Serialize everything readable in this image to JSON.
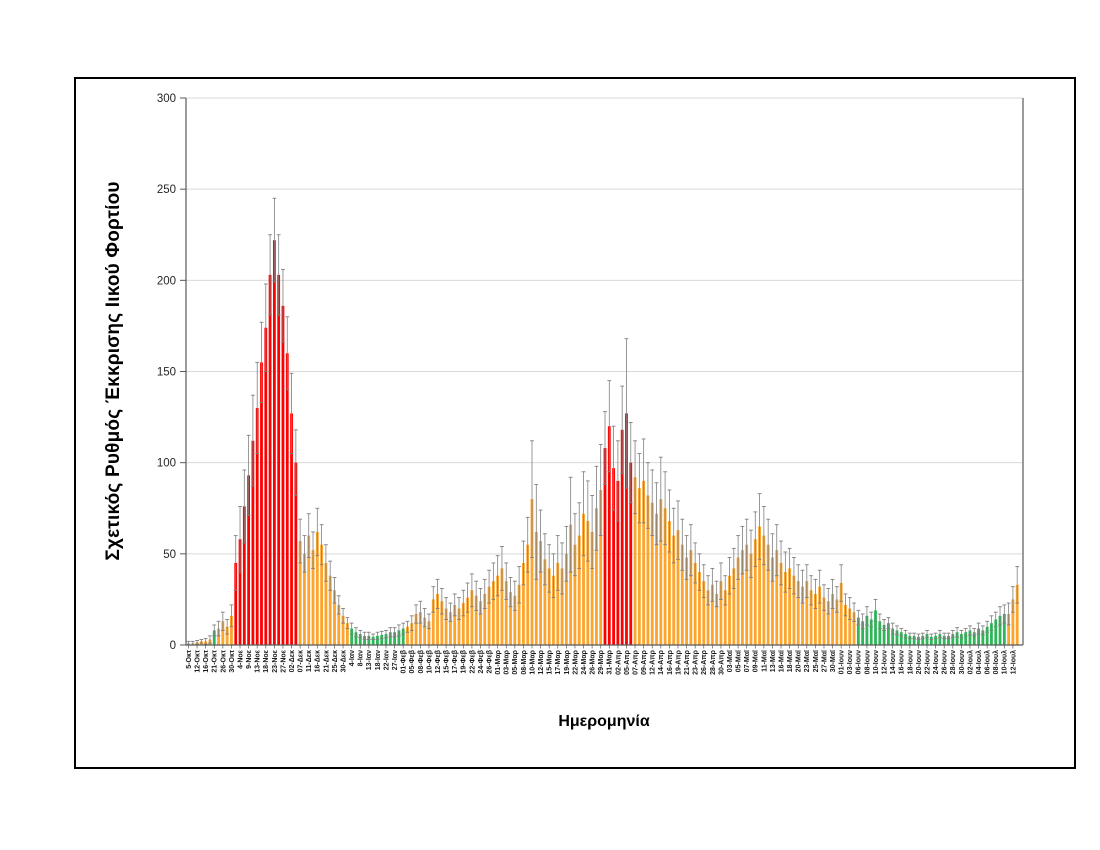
{
  "figure": {
    "y_axis_title": "Σχετικός Ρυθμός Έκκρισης Ιικού Φορτίου",
    "x_axis_title": "Ημερομηνία"
  },
  "chart_data": {
    "type": "bar",
    "title": "",
    "xlabel": "Ημερομηνία",
    "ylabel": "Σχετικός Ρυθμός Έκκρισης Ιικού Φορτίου",
    "ylim": [
      0,
      300
    ],
    "yticks": [
      0,
      50,
      100,
      150,
      200,
      250,
      300
    ],
    "grid": true,
    "legend": "none",
    "labels_every_n_bars": 2,
    "bar_colors": {
      "o": "#FCA42C",
      "r": "#FE0000",
      "g": "#2FB457"
    },
    "error_bar_color": "#7F7F7F",
    "gridline_color": "#D9D9D9",
    "axis_color": "#595959",
    "x_tick_labels": [
      "5-Οκτ",
      "12-Οκτ",
      "16-Οκτ",
      "21-Οκτ",
      "26-Οκτ",
      "30-Οκτ",
      "4-Νοε",
      "9-Νοε",
      "13-Νοε",
      "18-Νοε",
      "23-Νοε",
      "27-Νοε",
      "02-Δεκ",
      "07-Δεκ",
      "11-Δεκ",
      "16-Δεκ",
      "21-Δεκ",
      "25-Δεκ",
      "30-Δεκ",
      "4-Ιαν",
      "8-Ιαν",
      "13-Ιαν",
      "18-Ιαν",
      "22-Ιαν",
      "27-Ιαν",
      "01-Φεβ",
      "05-Φεβ",
      "08-Φεβ",
      "10-Φεβ",
      "12-Φεβ",
      "15-Φεβ",
      "17-Φεβ",
      "19-Φεβ",
      "22-Φεβ",
      "24-Φεβ",
      "26-Φεβ",
      "01-Μαρ",
      "03-Μαρ",
      "05-Μαρ",
      "08-Μαρ",
      "10-Μαρ",
      "12-Μαρ",
      "15-Μαρ",
      "17-Μαρ",
      "19-Μαρ",
      "22-Μαρ",
      "24-Μαρ",
      "26-Μαρ",
      "29-Μαρ",
      "31-Μαρ",
      "02-Απρ",
      "05-Απρ",
      "07-Απρ",
      "09-Απρ",
      "12-Απρ",
      "14-Απρ",
      "16-Απρ",
      "19-Απρ",
      "21-Απρ",
      "23-Απρ",
      "26-Απρ",
      "28-Απρ",
      "30-Απρ",
      "03-Μαϊ",
      "05-Μαϊ",
      "07-Μαϊ",
      "09-Μαϊ",
      "11-Μαϊ",
      "13-Μαϊ",
      "16-Μαϊ",
      "18-Μαϊ",
      "20-Μαϊ",
      "23-Μαϊ",
      "25-Μαϊ",
      "27-Μαϊ",
      "30-Μαϊ",
      "01-Ιουν",
      "03-Ιουν",
      "06-Ιουν",
      "08-Ιουν",
      "10-Ιουν",
      "12-Ιουν",
      "14-Ιουν",
      "16-Ιουν",
      "18-Ιουν",
      "20-Ιουν",
      "22-Ιουν",
      "24-Ιουν",
      "26-Ιουν",
      "28-Ιουν",
      "30-Ιουν",
      "02-Ιουλ",
      "04-Ιουλ",
      "06-Ιουλ",
      "08-Ιουλ",
      "10-Ιουλ",
      "12-Ιουλ"
    ],
    "bars": [
      [
        1,
        1,
        "o"
      ],
      [
        1,
        1,
        "o"
      ],
      [
        1.5,
        1,
        "o"
      ],
      [
        2,
        1,
        "o"
      ],
      [
        2,
        1.5,
        "o"
      ],
      [
        3,
        2,
        "o"
      ],
      [
        8,
        3,
        "g"
      ],
      [
        9,
        4,
        "o"
      ],
      [
        13,
        5,
        "o"
      ],
      [
        10,
        4,
        "o"
      ],
      [
        16,
        6,
        "o"
      ],
      [
        45,
        15,
        "r"
      ],
      [
        58,
        18,
        "r"
      ],
      [
        76,
        20,
        "r"
      ],
      [
        93,
        22,
        "r"
      ],
      [
        112,
        25,
        "r"
      ],
      [
        130,
        25,
        "r"
      ],
      [
        155,
        22,
        "r"
      ],
      [
        174,
        24,
        "r"
      ],
      [
        203,
        22,
        "r"
      ],
      [
        222,
        23,
        "r"
      ],
      [
        203,
        22,
        "r"
      ],
      [
        186,
        20,
        "r"
      ],
      [
        160,
        20,
        "r"
      ],
      [
        127,
        22,
        "r"
      ],
      [
        100,
        18,
        "r"
      ],
      [
        57,
        12,
        "o"
      ],
      [
        50,
        10,
        "o"
      ],
      [
        60,
        12,
        "o"
      ],
      [
        52,
        10,
        "o"
      ],
      [
        62,
        13,
        "o"
      ],
      [
        55,
        11,
        "o"
      ],
      [
        45,
        10,
        "o"
      ],
      [
        38,
        8,
        "o"
      ],
      [
        30,
        7,
        "o"
      ],
      [
        22,
        5,
        "o"
      ],
      [
        16,
        4,
        "o"
      ],
      [
        12,
        3,
        "o"
      ],
      [
        9,
        3,
        "g"
      ],
      [
        7,
        2.5,
        "g"
      ],
      [
        6,
        2,
        "g"
      ],
      [
        5,
        2,
        "g"
      ],
      [
        5,
        2,
        "g"
      ],
      [
        4.5,
        1.5,
        "g"
      ],
      [
        5,
        2,
        "g"
      ],
      [
        5.5,
        2,
        "g"
      ],
      [
        6,
        2,
        "g"
      ],
      [
        7,
        2.5,
        "g"
      ],
      [
        7,
        2.5,
        "g"
      ],
      [
        8,
        3,
        "g"
      ],
      [
        9,
        3,
        "g"
      ],
      [
        10,
        3,
        "o"
      ],
      [
        12,
        4,
        "o"
      ],
      [
        17,
        5,
        "o"
      ],
      [
        18,
        6,
        "o"
      ],
      [
        15,
        5,
        "o"
      ],
      [
        13,
        4,
        "o"
      ],
      [
        25,
        7,
        "o"
      ],
      [
        28,
        8,
        "o"
      ],
      [
        24,
        7,
        "o"
      ],
      [
        20,
        6,
        "o"
      ],
      [
        18,
        5,
        "o"
      ],
      [
        22,
        6,
        "o"
      ],
      [
        20,
        6,
        "o"
      ],
      [
        23,
        7,
        "o"
      ],
      [
        26,
        8,
        "o"
      ],
      [
        30,
        9,
        "o"
      ],
      [
        27,
        8,
        "o"
      ],
      [
        24,
        7,
        "o"
      ],
      [
        28,
        8,
        "o"
      ],
      [
        32,
        9,
        "o"
      ],
      [
        35,
        10,
        "o"
      ],
      [
        38,
        11,
        "o"
      ],
      [
        42,
        12,
        "o"
      ],
      [
        35,
        10,
        "o"
      ],
      [
        29,
        8,
        "o"
      ],
      [
        27,
        8,
        "o"
      ],
      [
        33,
        10,
        "o"
      ],
      [
        45,
        12,
        "o"
      ],
      [
        55,
        15,
        "o"
      ],
      [
        80,
        32,
        "o"
      ],
      [
        62,
        26,
        "o"
      ],
      [
        57,
        17,
        "o"
      ],
      [
        47,
        14,
        "o"
      ],
      [
        42,
        13,
        "o"
      ],
      [
        38,
        12,
        "o"
      ],
      [
        45,
        15,
        "o"
      ],
      [
        42,
        14,
        "o"
      ],
      [
        50,
        15,
        "o"
      ],
      [
        66,
        26,
        "o"
      ],
      [
        55,
        17,
        "o"
      ],
      [
        60,
        18,
        "o"
      ],
      [
        72,
        23,
        "o"
      ],
      [
        68,
        22,
        "o"
      ],
      [
        62,
        20,
        "o"
      ],
      [
        75,
        23,
        "o"
      ],
      [
        85,
        25,
        "o"
      ],
      [
        108,
        20,
        "r"
      ],
      [
        120,
        25,
        "r"
      ],
      [
        97,
        23,
        "r"
      ],
      [
        90,
        22,
        "r"
      ],
      [
        118,
        24,
        "r"
      ],
      [
        127,
        41,
        "r"
      ],
      [
        100,
        22,
        "r"
      ],
      [
        92,
        20,
        "o"
      ],
      [
        86,
        19,
        "o"
      ],
      [
        90,
        23,
        "o"
      ],
      [
        82,
        18,
        "o"
      ],
      [
        78,
        18,
        "o"
      ],
      [
        72,
        17,
        "o"
      ],
      [
        80,
        23,
        "o"
      ],
      [
        75,
        20,
        "o"
      ],
      [
        68,
        17,
        "o"
      ],
      [
        60,
        15,
        "o"
      ],
      [
        63,
        16,
        "o"
      ],
      [
        55,
        14,
        "o"
      ],
      [
        48,
        12,
        "o"
      ],
      [
        52,
        14,
        "o"
      ],
      [
        45,
        11,
        "o"
      ],
      [
        40,
        10,
        "o"
      ],
      [
        35,
        9,
        "o"
      ],
      [
        30,
        8,
        "o"
      ],
      [
        33,
        9,
        "o"
      ],
      [
        28,
        7,
        "o"
      ],
      [
        35,
        10,
        "o"
      ],
      [
        30,
        8,
        "o"
      ],
      [
        38,
        10,
        "o"
      ],
      [
        42,
        11,
        "o"
      ],
      [
        48,
        12,
        "o"
      ],
      [
        52,
        13,
        "o"
      ],
      [
        55,
        14,
        "o"
      ],
      [
        50,
        13,
        "o"
      ],
      [
        58,
        15,
        "o"
      ],
      [
        65,
        18,
        "o"
      ],
      [
        60,
        16,
        "o"
      ],
      [
        55,
        14,
        "o"
      ],
      [
        48,
        13,
        "o"
      ],
      [
        52,
        14,
        "o"
      ],
      [
        45,
        12,
        "o"
      ],
      [
        40,
        11,
        "o"
      ],
      [
        42,
        11,
        "o"
      ],
      [
        38,
        10,
        "o"
      ],
      [
        35,
        9,
        "o"
      ],
      [
        32,
        9,
        "o"
      ],
      [
        35,
        9,
        "o"
      ],
      [
        30,
        8,
        "o"
      ],
      [
        28,
        8,
        "o"
      ],
      [
        32,
        9,
        "o"
      ],
      [
        26,
        7,
        "o"
      ],
      [
        24,
        7,
        "o"
      ],
      [
        28,
        8,
        "o"
      ],
      [
        25,
        7,
        "o"
      ],
      [
        34,
        10,
        "o"
      ],
      [
        22,
        6,
        "o"
      ],
      [
        20,
        6,
        "o"
      ],
      [
        18,
        5,
        "o"
      ],
      [
        15,
        4,
        "g"
      ],
      [
        13,
        4,
        "g"
      ],
      [
        16,
        5,
        "g"
      ],
      [
        14,
        4,
        "g"
      ],
      [
        19,
        6,
        "g"
      ],
      [
        13,
        4,
        "g"
      ],
      [
        11,
        3,
        "g"
      ],
      [
        12,
        3,
        "g"
      ],
      [
        9,
        3,
        "g"
      ],
      [
        8,
        2.5,
        "g"
      ],
      [
        7,
        2,
        "g"
      ],
      [
        6,
        2,
        "g"
      ],
      [
        5,
        1.5,
        "g"
      ],
      [
        5,
        1.5,
        "g"
      ],
      [
        4.5,
        1.5,
        "g"
      ],
      [
        5,
        1.5,
        "g"
      ],
      [
        6,
        2,
        "g"
      ],
      [
        4.5,
        1.5,
        "g"
      ],
      [
        5,
        1.5,
        "g"
      ],
      [
        6,
        2,
        "g"
      ],
      [
        5,
        1.5,
        "g"
      ],
      [
        5,
        1.5,
        "g"
      ],
      [
        6,
        2,
        "g"
      ],
      [
        7,
        2.5,
        "g"
      ],
      [
        6,
        2,
        "g"
      ],
      [
        7,
        2,
        "g"
      ],
      [
        8,
        2.5,
        "g"
      ],
      [
        7,
        2,
        "g"
      ],
      [
        9,
        3,
        "g"
      ],
      [
        8,
        2.5,
        "g"
      ],
      [
        10,
        3,
        "g"
      ],
      [
        12,
        4,
        "g"
      ],
      [
        14,
        4,
        "g"
      ],
      [
        16,
        5,
        "g"
      ],
      [
        17,
        5,
        "g"
      ],
      [
        17,
        6,
        "o"
      ],
      [
        25,
        7,
        "o"
      ],
      [
        33,
        10,
        "o"
      ]
    ]
  }
}
